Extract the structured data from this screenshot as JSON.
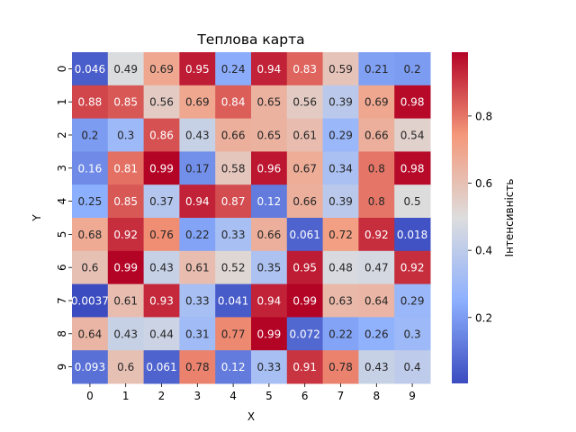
{
  "chart_data": {
    "type": "heatmap",
    "title": "Теплова карта",
    "xlabel": "X",
    "ylabel": "Y",
    "colorbar_label": "Інтенсивність",
    "colormap": "coolwarm",
    "x_categories": [
      "0",
      "1",
      "2",
      "3",
      "4",
      "5",
      "6",
      "7",
      "8",
      "9"
    ],
    "y_categories": [
      "0",
      "1",
      "2",
      "3",
      "4",
      "5",
      "6",
      "7",
      "8",
      "9"
    ],
    "values": [
      [
        0.046,
        0.49,
        0.69,
        0.95,
        0.24,
        0.94,
        0.83,
        0.59,
        0.21,
        0.2
      ],
      [
        0.88,
        0.85,
        0.56,
        0.69,
        0.84,
        0.65,
        0.56,
        0.39,
        0.69,
        0.98
      ],
      [
        0.2,
        0.3,
        0.86,
        0.43,
        0.66,
        0.65,
        0.61,
        0.29,
        0.66,
        0.54
      ],
      [
        0.16,
        0.81,
        0.99,
        0.17,
        0.58,
        0.96,
        0.67,
        0.34,
        0.8,
        0.98
      ],
      [
        0.25,
        0.85,
        0.37,
        0.94,
        0.87,
        0.12,
        0.66,
        0.39,
        0.8,
        0.5
      ],
      [
        0.68,
        0.92,
        0.76,
        0.22,
        0.33,
        0.66,
        0.061,
        0.72,
        0.92,
        0.018
      ],
      [
        0.6,
        0.99,
        0.43,
        0.61,
        0.52,
        0.35,
        0.95,
        0.48,
        0.47,
        0.92
      ],
      [
        0.0037,
        0.61,
        0.93,
        0.33,
        0.041,
        0.94,
        0.99,
        0.63,
        0.64,
        0.29
      ],
      [
        0.64,
        0.43,
        0.44,
        0.31,
        0.77,
        0.99,
        0.072,
        0.22,
        0.26,
        0.3
      ],
      [
        0.093,
        0.6,
        0.061,
        0.78,
        0.12,
        0.33,
        0.91,
        0.78,
        0.43,
        0.4
      ]
    ],
    "cell_labels": [
      [
        "0.046",
        "0.49",
        "0.69",
        "0.95",
        "0.24",
        "0.94",
        "0.83",
        "0.59",
        "0.21",
        "0.2"
      ],
      [
        "0.88",
        "0.85",
        "0.56",
        "0.69",
        "0.84",
        "0.65",
        "0.56",
        "0.39",
        "0.69",
        "0.98"
      ],
      [
        "0.2",
        "0.3",
        "0.86",
        "0.43",
        "0.66",
        "0.65",
        "0.61",
        "0.29",
        "0.66",
        "0.54"
      ],
      [
        "0.16",
        "0.81",
        "0.99",
        "0.17",
        "0.58",
        "0.96",
        "0.67",
        "0.34",
        "0.8",
        "0.98"
      ],
      [
        "0.25",
        "0.85",
        "0.37",
        "0.94",
        "0.87",
        "0.12",
        "0.66",
        "0.39",
        "0.8",
        "0.5"
      ],
      [
        "0.68",
        "0.92",
        "0.76",
        "0.22",
        "0.33",
        "0.66",
        "0.061",
        "0.72",
        "0.92",
        "0.018"
      ],
      [
        "0.6",
        "0.99",
        "0.43",
        "0.61",
        "0.52",
        "0.35",
        "0.95",
        "0.48",
        "0.47",
        "0.92"
      ],
      [
        "0.0037",
        "0.61",
        "0.93",
        "0.33",
        "0.041",
        "0.94",
        "0.99",
        "0.63",
        "0.64",
        "0.29"
      ],
      [
        "0.64",
        "0.43",
        "0.44",
        "0.31",
        "0.77",
        "0.99",
        "0.072",
        "0.22",
        "0.26",
        "0.3"
      ],
      [
        "0.093",
        "0.6",
        "0.061",
        "0.78",
        "0.12",
        "0.33",
        "0.91",
        "0.78",
        "0.43",
        "0.4"
      ]
    ],
    "colorbar_range": [
      0.0037,
      0.99
    ],
    "colorbar_ticks": [
      0.2,
      0.4,
      0.6,
      0.8
    ],
    "colorbar_tick_labels": [
      "0.2",
      "0.4",
      "0.6",
      "0.8"
    ],
    "grid": false,
    "legend": "colorbar-right"
  }
}
